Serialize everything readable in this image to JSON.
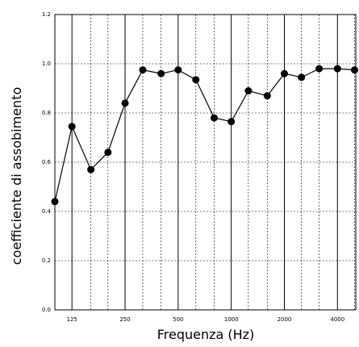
{
  "chart_data": {
    "type": "line",
    "xlabel": "Frequenza (Hz)",
    "ylabel": "coefficiente di assobimento",
    "ylim": [
      0,
      1.2
    ],
    "y_ticks": [
      "0.0",
      "0.2",
      "0.4",
      "0.6",
      "0.8",
      "1.0",
      "1.2"
    ],
    "x_scale": "log (third-octave bands)",
    "x_ticks": [
      "125",
      "250",
      "500",
      "1000",
      "2000",
      "4000"
    ],
    "grid": true,
    "series": [
      {
        "color": "#000000",
        "points": [
          {
            "x": 100,
            "y": 0.44
          },
          {
            "x": 125,
            "y": 0.745
          },
          {
            "x": 160,
            "y": 0.57
          },
          {
            "x": 200,
            "y": 0.64
          },
          {
            "x": 250,
            "y": 0.84
          },
          {
            "x": 315,
            "y": 0.975
          },
          {
            "x": 400,
            "y": 0.96
          },
          {
            "x": 500,
            "y": 0.975
          },
          {
            "x": 630,
            "y": 0.935
          },
          {
            "x": 800,
            "y": 0.78
          },
          {
            "x": 1000,
            "y": 0.765
          },
          {
            "x": 1250,
            "y": 0.89
          },
          {
            "x": 1600,
            "y": 0.87
          },
          {
            "x": 2000,
            "y": 0.96
          },
          {
            "x": 2500,
            "y": 0.945
          },
          {
            "x": 3150,
            "y": 0.98
          },
          {
            "x": 4000,
            "y": 0.98
          },
          {
            "x": 5000,
            "y": 0.975
          }
        ]
      }
    ]
  }
}
